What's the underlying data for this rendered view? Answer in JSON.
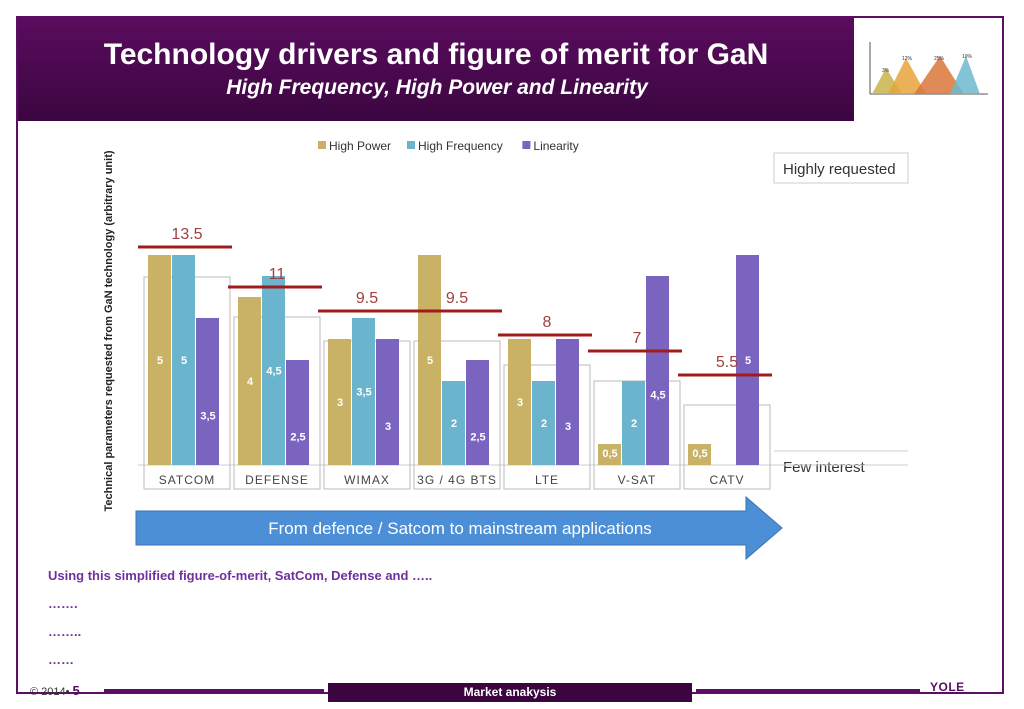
{
  "slide": {
    "title": "Technology drivers and figure of merit for GaN",
    "subtitle": "High Frequency, High Power and Linearity",
    "body_lines": [
      "Using this simplified figure-of-merit, SatCom, Defense and …..",
      "…….",
      "……..",
      "……"
    ],
    "footer_left": "© 2014•",
    "footer_page": "5",
    "footer_center": "Market anakysis",
    "logo_text": "YOLE"
  },
  "mini_chart": {
    "labels": [
      "3%",
      "12%",
      "25%",
      "10%"
    ],
    "colors": [
      "#c9b44a",
      "#e8a33c",
      "#d9763a",
      "#6fb9cf"
    ]
  },
  "chart_data": {
    "type": "bar",
    "categories": [
      "SATCOM",
      "DEFENSE",
      "WIMAX",
      "3G / 4G BTS",
      "LTE",
      "V-SAT",
      "CATV"
    ],
    "series": [
      {
        "name": "High Power",
        "color": "#c9b165",
        "values": [
          5,
          4,
          3,
          5,
          3,
          0.5,
          0.5
        ]
      },
      {
        "name": "High Frequency",
        "color": "#6ab4cd",
        "values": [
          5,
          4.5,
          3.5,
          2,
          2,
          2,
          null
        ]
      },
      {
        "name": "Linearity",
        "color": "#7b64c0",
        "values": [
          3.5,
          2.5,
          3,
          2.5,
          3,
          4.5,
          5
        ]
      }
    ],
    "value_labels": [
      [
        "5",
        "5",
        "3,5"
      ],
      [
        "4",
        "4,5",
        "2,5"
      ],
      [
        "3",
        "3,5",
        "3"
      ],
      [
        "5",
        "2",
        "2,5"
      ],
      [
        "3",
        "2",
        "3"
      ],
      [
        "0,5",
        "2",
        "4,5"
      ],
      [
        "0,5",
        "",
        "5"
      ]
    ],
    "totals": [
      "13.5",
      "11",
      "9.5",
      "9.5",
      "8",
      "7",
      "5.5"
    ],
    "total_values": [
      13.5,
      11,
      9.5,
      9.5,
      8,
      7,
      5.5
    ],
    "ylabel": "Technical parameters requested from GaN technology (arbitrary unit)",
    "ylim": [
      0,
      5.5
    ],
    "top_label": "Highly requested",
    "bottom_label": "Few interest",
    "arrow_text": "From defence / Satcom to mainstream applications",
    "total_line_color": "#a01b1b",
    "legend_position": "top"
  }
}
